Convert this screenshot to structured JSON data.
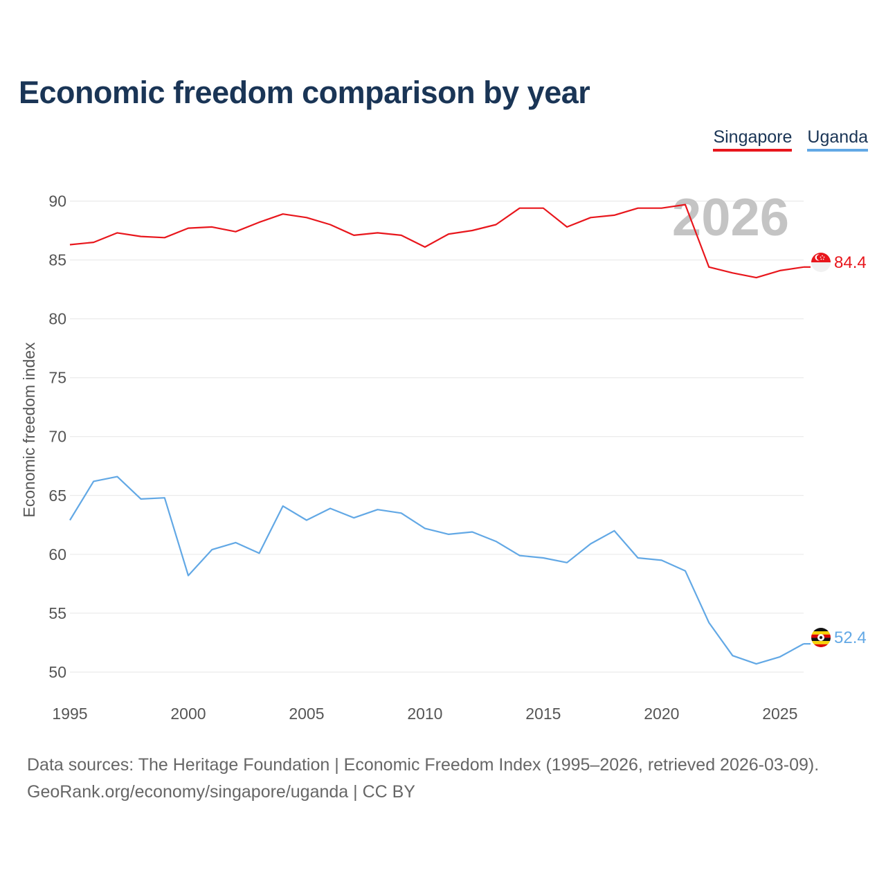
{
  "title": "Economic freedom comparison by year",
  "legend": {
    "items": [
      {
        "label": "Singapore",
        "color": "#e8161c"
      },
      {
        "label": "Uganda",
        "color": "#62a8e5"
      }
    ]
  },
  "year_watermark": "2026",
  "footer": {
    "sources": "Data sources: The Heritage Foundation | Economic Freedom Index (1995–2026, retrieved 2026-03-09).",
    "credit": "GeoRank.org/economy/singapore/uganda | CC BY"
  },
  "chart_data": {
    "type": "line",
    "title": "Economic freedom comparison by year",
    "xlabel": "",
    "ylabel": "Economic freedom index",
    "x": [
      1995,
      1996,
      1997,
      1998,
      1999,
      2000,
      2001,
      2002,
      2003,
      2004,
      2005,
      2006,
      2007,
      2008,
      2009,
      2010,
      2011,
      2012,
      2013,
      2014,
      2015,
      2016,
      2017,
      2018,
      2019,
      2020,
      2021,
      2022,
      2023,
      2024,
      2025,
      2026
    ],
    "xlim": [
      1995,
      2026
    ],
    "ylim": [
      48,
      91.5
    ],
    "xticks": [
      1995,
      2000,
      2005,
      2010,
      2015,
      2020,
      2025
    ],
    "yticks": [
      50,
      55,
      60,
      65,
      70,
      75,
      80,
      85,
      90
    ],
    "grid": true,
    "legend_position": "top-right",
    "series": [
      {
        "name": "Singapore",
        "color": "#e8161c",
        "end_label": "84.4",
        "flag_icon": "singapore-flag-icon",
        "values": [
          86.3,
          86.5,
          87.3,
          87.0,
          86.9,
          87.7,
          87.8,
          87.4,
          88.2,
          88.9,
          88.6,
          88.0,
          87.1,
          87.3,
          87.1,
          86.1,
          87.2,
          87.5,
          88.0,
          89.4,
          89.4,
          87.8,
          88.6,
          88.8,
          89.4,
          89.4,
          89.7,
          84.4,
          83.9,
          83.5,
          84.1,
          84.4
        ]
      },
      {
        "name": "Uganda",
        "color": "#62a8e5",
        "end_label": "52.4",
        "flag_icon": "uganda-flag-icon",
        "values": [
          62.9,
          66.2,
          66.6,
          64.7,
          64.8,
          58.2,
          60.4,
          61.0,
          60.1,
          64.1,
          62.9,
          63.9,
          63.1,
          63.8,
          63.5,
          62.2,
          61.7,
          61.9,
          61.1,
          59.9,
          59.7,
          59.3,
          60.9,
          62.0,
          59.7,
          59.5,
          58.6,
          54.2,
          51.4,
          50.7,
          51.3,
          52.4
        ]
      }
    ]
  }
}
